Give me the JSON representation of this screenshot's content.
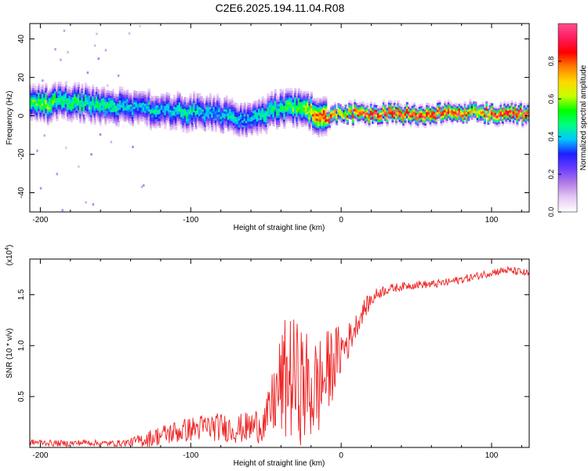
{
  "title": "C2E6.2025.194.11.04.R08",
  "chart_data": [
    {
      "type": "heatmap",
      "xlabel": "Height of straight line (km)",
      "ylabel": "Frequency (Hz)",
      "xlim": [
        -207,
        125
      ],
      "ylim": [
        -50,
        48
      ],
      "x_ticks": [
        -200,
        -100,
        0,
        100
      ],
      "x_tick_labels": [
        "-200",
        "-100",
        "0",
        "100"
      ],
      "y_ticks": [
        -40,
        -20,
        0,
        20,
        40
      ],
      "y_tick_labels": [
        "-40",
        "-20",
        "0",
        "20",
        "40"
      ],
      "colorbar": {
        "label": "Normalized spectral amplitude",
        "range": [
          0,
          1
        ],
        "ticks": [
          0.0,
          0.2,
          0.4,
          0.6,
          0.8
        ],
        "tick_labels": [
          "0.0",
          "0.2",
          "0.4",
          "0.6",
          "0.8"
        ],
        "colors": [
          "#ffffff",
          "#e6c8f5",
          "#b07ce6",
          "#6a3cff",
          "#1e1eff",
          "#00c8ff",
          "#00ff80",
          "#00ff00",
          "#c8ff00",
          "#ffd700",
          "#ff8000",
          "#ff0000",
          "#ff1a5e",
          "#ff4f8f"
        ]
      },
      "ridge": {
        "x": [
          -205,
          -195,
          -185,
          -175,
          -165,
          -155,
          -145,
          -135,
          -125,
          -115,
          -105,
          -95,
          -85,
          -75,
          -65,
          -55,
          -45,
          -35,
          -25,
          -15,
          -10,
          -5,
          0,
          10,
          30,
          60,
          80,
          90,
          100,
          125
        ],
        "freq": [
          7,
          6,
          8,
          7,
          6,
          5,
          5,
          4,
          3,
          3,
          2,
          2,
          1,
          0,
          -2,
          -1,
          3,
          4,
          3,
          0,
          -1,
          0,
          2,
          1,
          1,
          1,
          1,
          2,
          1,
          1
        ],
        "amplitude": [
          0.55,
          0.6,
          0.5,
          0.55,
          0.5,
          0.5,
          0.45,
          0.4,
          0.45,
          0.4,
          0.5,
          0.45,
          0.4,
          0.45,
          0.4,
          0.45,
          0.5,
          0.55,
          0.6,
          0.85,
          0.95,
          0.9,
          0.7,
          0.95,
          1.0,
          1.0,
          0.9,
          0.75,
          0.95,
          1.0
        ]
      }
    },
    {
      "type": "line",
      "xlabel": "Height of straight line (km)",
      "ylabel": "SNR (10 * v/v)",
      "multiplier_label": "(x10",
      "multiplier_exp": "4",
      "xlim": [
        -207,
        125
      ],
      "ylim": [
        0,
        1.85
      ],
      "x_ticks": [
        -200,
        -100,
        0,
        100
      ],
      "x_tick_labels": [
        "-200",
        "-100",
        "0",
        "100"
      ],
      "y_ticks": [
        0.5,
        1.0,
        1.5
      ],
      "y_tick_labels": [
        "0.5",
        "1.0",
        "1.5"
      ],
      "color": "#ee2222",
      "series": [
        {
          "x": [
            -207,
            -200,
            -190,
            -180,
            -170,
            -160,
            -150,
            -140,
            -130,
            -120,
            -110,
            -100,
            -90,
            -80,
            -70,
            -60,
            -50,
            -45,
            -40,
            -35,
            -30,
            -25,
            -20,
            -15,
            -10,
            -5,
            0,
            5,
            10,
            15,
            20,
            25,
            30,
            40,
            50,
            60,
            70,
            80,
            90,
            100,
            110,
            120,
            125
          ],
          "y": [
            0.05,
            0.05,
            0.04,
            0.04,
            0.05,
            0.04,
            0.04,
            0.05,
            0.08,
            0.12,
            0.15,
            0.18,
            0.2,
            0.2,
            0.18,
            0.2,
            0.25,
            0.45,
            0.6,
            0.7,
            0.65,
            0.6,
            0.55,
            0.6,
            0.7,
            0.85,
            0.95,
            1.05,
            1.2,
            1.35,
            1.45,
            1.52,
            1.55,
            1.58,
            1.6,
            1.6,
            1.62,
            1.65,
            1.68,
            1.72,
            1.74,
            1.72,
            1.7
          ],
          "spread": [
            0.03,
            0.03,
            0.03,
            0.03,
            0.03,
            0.03,
            0.03,
            0.04,
            0.08,
            0.1,
            0.12,
            0.12,
            0.14,
            0.14,
            0.14,
            0.16,
            0.2,
            0.35,
            0.55,
            0.65,
            0.6,
            0.6,
            0.55,
            0.5,
            0.45,
            0.35,
            0.25,
            0.18,
            0.12,
            0.1,
            0.08,
            0.06,
            0.05,
            0.04,
            0.04,
            0.04,
            0.04,
            0.04,
            0.04,
            0.04,
            0.04,
            0.04,
            0.04
          ]
        }
      ]
    }
  ]
}
